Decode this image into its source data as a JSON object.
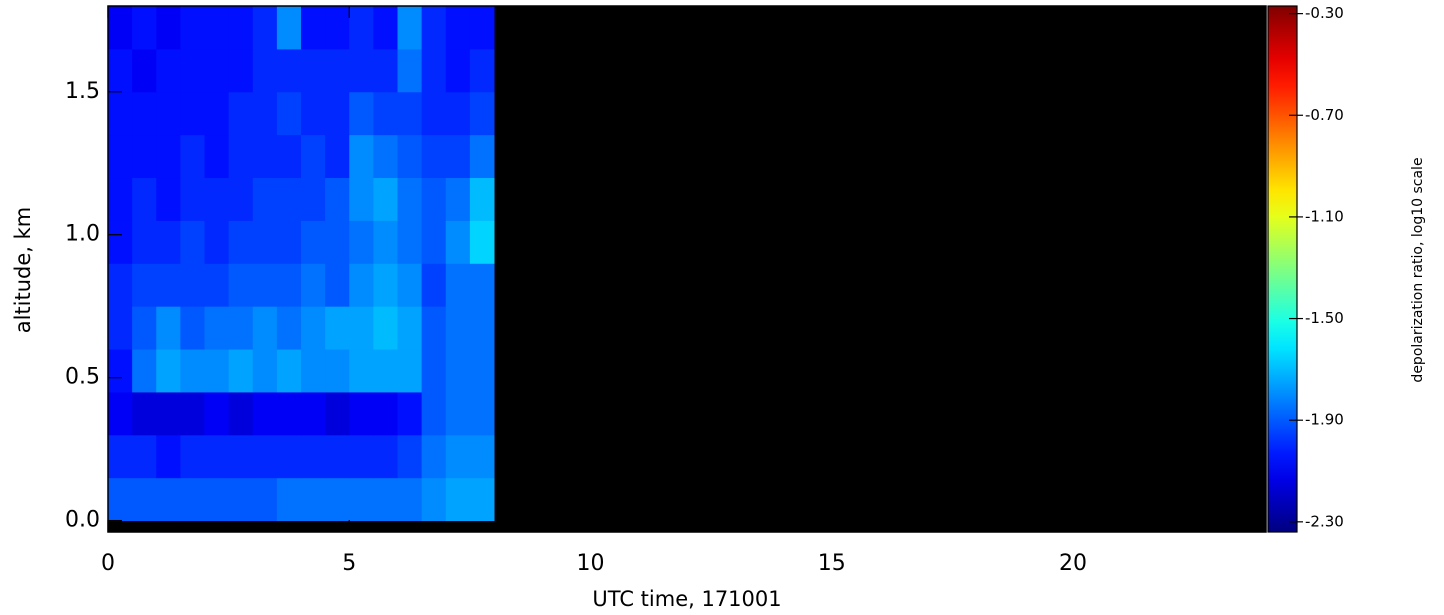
{
  "chart_data": {
    "type": "heatmap",
    "x_label": "UTC time, 171001",
    "y_label": "altitude, km",
    "colormap": "jet",
    "x": [
      0,
      0.5,
      1,
      1.5,
      2,
      2.5,
      3,
      3.5,
      4,
      4.5,
      5,
      5.5,
      6,
      6.5,
      7,
      7.5,
      8
    ],
    "y": [
      0,
      0.15,
      0.3,
      0.45,
      0.6,
      0.75,
      0.9,
      1.05,
      1.2,
      1.35,
      1.5,
      1.65,
      1.8
    ],
    "values": [
      [
        -1.9,
        -1.9,
        -1.9,
        -1.9,
        -1.9,
        -1.9,
        -1.9,
        -1.85,
        -1.85,
        -1.85,
        -1.85,
        -1.85,
        -1.85,
        -1.8,
        -1.75,
        -1.75
      ],
      [
        -2.0,
        -2.0,
        -2.05,
        -2.0,
        -2.0,
        -2.0,
        -2.0,
        -2.0,
        -2.0,
        -2.0,
        -2.0,
        -2.0,
        -1.95,
        -1.85,
        -1.8,
        -1.8
      ],
      [
        -2.1,
        -2.15,
        -2.15,
        -2.15,
        -2.1,
        -2.15,
        -2.1,
        -2.1,
        -2.1,
        -2.15,
        -2.1,
        -2.1,
        -2.05,
        -1.9,
        -1.85,
        -1.85
      ],
      [
        -2.05,
        -1.85,
        -1.75,
        -1.8,
        -1.8,
        -1.75,
        -1.8,
        -1.75,
        -1.8,
        -1.8,
        -1.75,
        -1.75,
        -1.75,
        -1.9,
        -1.85,
        -1.85
      ],
      [
        -2.0,
        -1.9,
        -1.8,
        -1.9,
        -1.85,
        -1.85,
        -1.8,
        -1.85,
        -1.8,
        -1.75,
        -1.75,
        -1.7,
        -1.75,
        -1.9,
        -1.85,
        -1.85
      ],
      [
        -2.0,
        -1.95,
        -1.95,
        -1.95,
        -1.95,
        -1.9,
        -1.9,
        -1.9,
        -1.85,
        -1.9,
        -1.8,
        -1.75,
        -1.8,
        -1.95,
        -1.85,
        -1.85
      ],
      [
        -2.05,
        -2.0,
        -2.0,
        -1.95,
        -2.0,
        -1.95,
        -1.95,
        -1.95,
        -1.9,
        -1.9,
        -1.85,
        -1.8,
        -1.85,
        -1.9,
        -1.8,
        -1.65
      ],
      [
        -2.05,
        -2.0,
        -2.05,
        -2.0,
        -2.0,
        -2.0,
        -1.95,
        -1.95,
        -1.95,
        -1.9,
        -1.8,
        -1.75,
        -1.85,
        -1.9,
        -1.85,
        -1.7
      ],
      [
        -2.05,
        -2.05,
        -2.05,
        -2.0,
        -2.05,
        -2.0,
        -2.0,
        -2.0,
        -1.95,
        -2.0,
        -1.8,
        -1.85,
        -1.9,
        -1.95,
        -1.95,
        -1.85
      ],
      [
        -2.05,
        -2.05,
        -2.05,
        -2.05,
        -2.05,
        -2.0,
        -2.0,
        -1.95,
        -2.0,
        -2.0,
        -1.9,
        -1.95,
        -1.95,
        -2.0,
        -2.0,
        -1.95
      ],
      [
        -2.05,
        -2.1,
        -2.05,
        -2.05,
        -2.05,
        -2.05,
        -2.0,
        -2.0,
        -2.0,
        -2.0,
        -2.0,
        -2.0,
        -1.85,
        -2.0,
        -2.05,
        -2.0
      ],
      [
        -2.1,
        -2.05,
        -2.1,
        -2.05,
        -2.05,
        -2.05,
        -2.0,
        -1.8,
        -2.05,
        -2.05,
        -2.0,
        -2.05,
        -1.8,
        -2.0,
        -2.05,
        -2.05
      ]
    ],
    "xlim": [
      0,
      24
    ],
    "xticks": [
      0,
      5,
      10,
      15,
      20
    ],
    "ylim": [
      -0.04,
      1.8
    ],
    "yticks": [
      {
        "value": 0,
        "label": "0.0"
      },
      {
        "value": 0.5,
        "label": "0.5"
      },
      {
        "value": 1,
        "label": "1.0"
      },
      {
        "value": 1.5,
        "label": "1.5"
      }
    ],
    "colorbar": {
      "label": "depolarization ratio, log10 scale",
      "lim": [
        -2.34,
        -0.27
      ],
      "ticks": [
        {
          "value": -2.3,
          "label": "-2.30"
        },
        {
          "value": -1.9,
          "label": "-1.90"
        },
        {
          "value": -1.5,
          "label": "-1.50"
        },
        {
          "value": -1.1,
          "label": "-1.10"
        },
        {
          "value": -0.7,
          "label": "-0.70"
        },
        {
          "value": -0.3,
          "label": "-0.30"
        }
      ]
    }
  }
}
